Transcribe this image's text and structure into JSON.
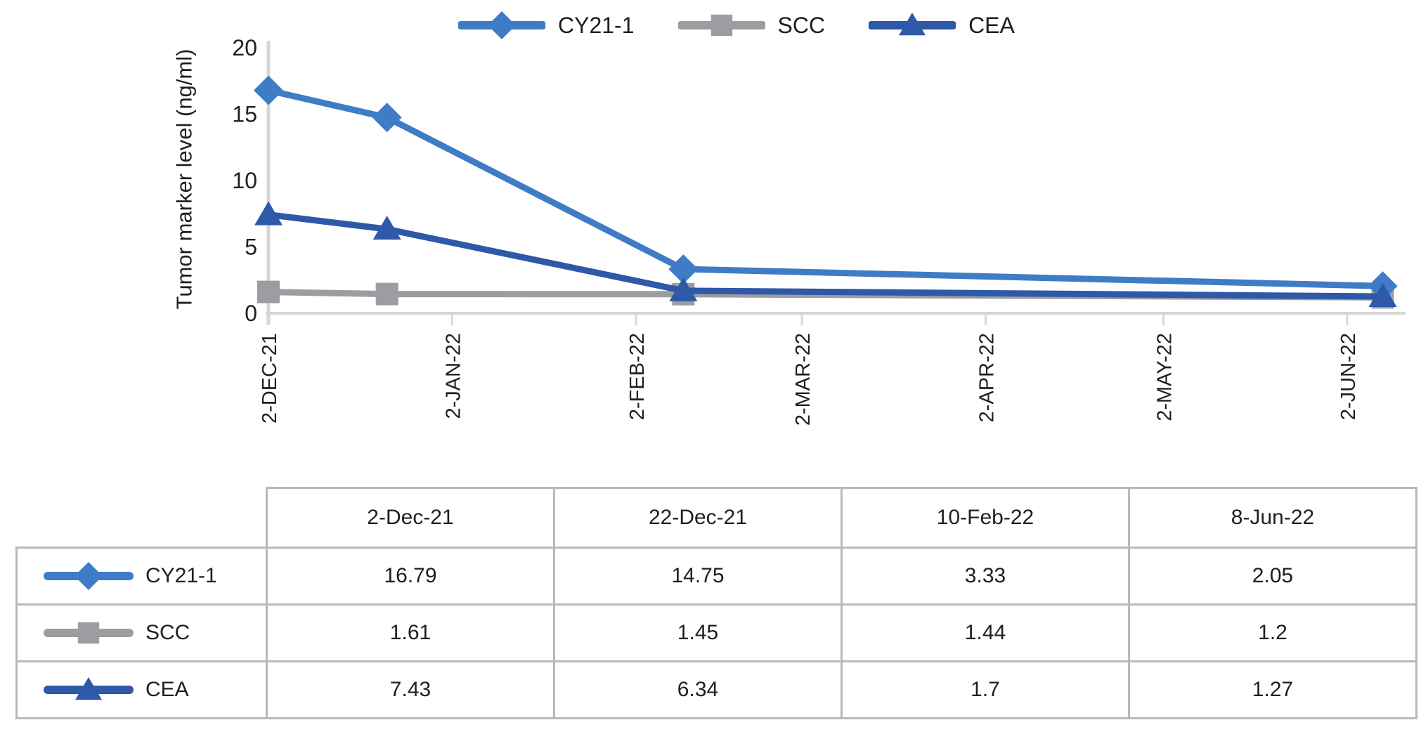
{
  "chart_data": {
    "type": "line",
    "title": "",
    "xlabel": "",
    "ylabel": "Tumor marker level (ng/ml)",
    "ylim": [
      0,
      20
    ],
    "yticks": [
      0,
      5,
      10,
      15,
      20
    ],
    "xticks": [
      {
        "label": "2-DEC-21",
        "day": 0
      },
      {
        "label": "2-JAN-22",
        "day": 31
      },
      {
        "label": "2-FEB-22",
        "day": 62
      },
      {
        "label": "2-MAR-22",
        "day": 90
      },
      {
        "label": "2-APR-22",
        "day": 121
      },
      {
        "label": "2-MAY-22",
        "day": 151
      },
      {
        "label": "2-JUN-22",
        "day": 182
      }
    ],
    "points": [
      {
        "date": "2-Dec-21",
        "day": 0
      },
      {
        "date": "22-Dec-21",
        "day": 20
      },
      {
        "date": "10-Feb-22",
        "day": 70
      },
      {
        "date": "8-Jun-22",
        "day": 188
      }
    ],
    "series": [
      {
        "name": "CY21-1",
        "marker": "diamond",
        "color": "#3e7cc6",
        "values": [
          16.79,
          14.75,
          3.33,
          2.05
        ]
      },
      {
        "name": "SCC",
        "marker": "square",
        "color": "#9b9da0",
        "values": [
          1.61,
          1.45,
          1.44,
          1.2
        ]
      },
      {
        "name": "CEA",
        "marker": "triangle",
        "color": "#2e58a8",
        "values": [
          7.43,
          6.34,
          1.7,
          1.27
        ]
      }
    ],
    "axis_color": "#d6d6d6",
    "legend_position": "top",
    "grid": false
  },
  "table": {
    "headers": [
      "2-Dec-21",
      "22-Dec-21",
      "10-Feb-22",
      "8-Jun-22"
    ],
    "rows": [
      {
        "label": "CY21-1",
        "values": [
          "16.79",
          "14.75",
          "3.33",
          "2.05"
        ]
      },
      {
        "label": "SCC",
        "values": [
          "1.61",
          "1.45",
          "1.44",
          "1.2"
        ]
      },
      {
        "label": "CEA",
        "values": [
          "7.43",
          "6.34",
          "1.7",
          "1.27"
        ]
      }
    ]
  }
}
